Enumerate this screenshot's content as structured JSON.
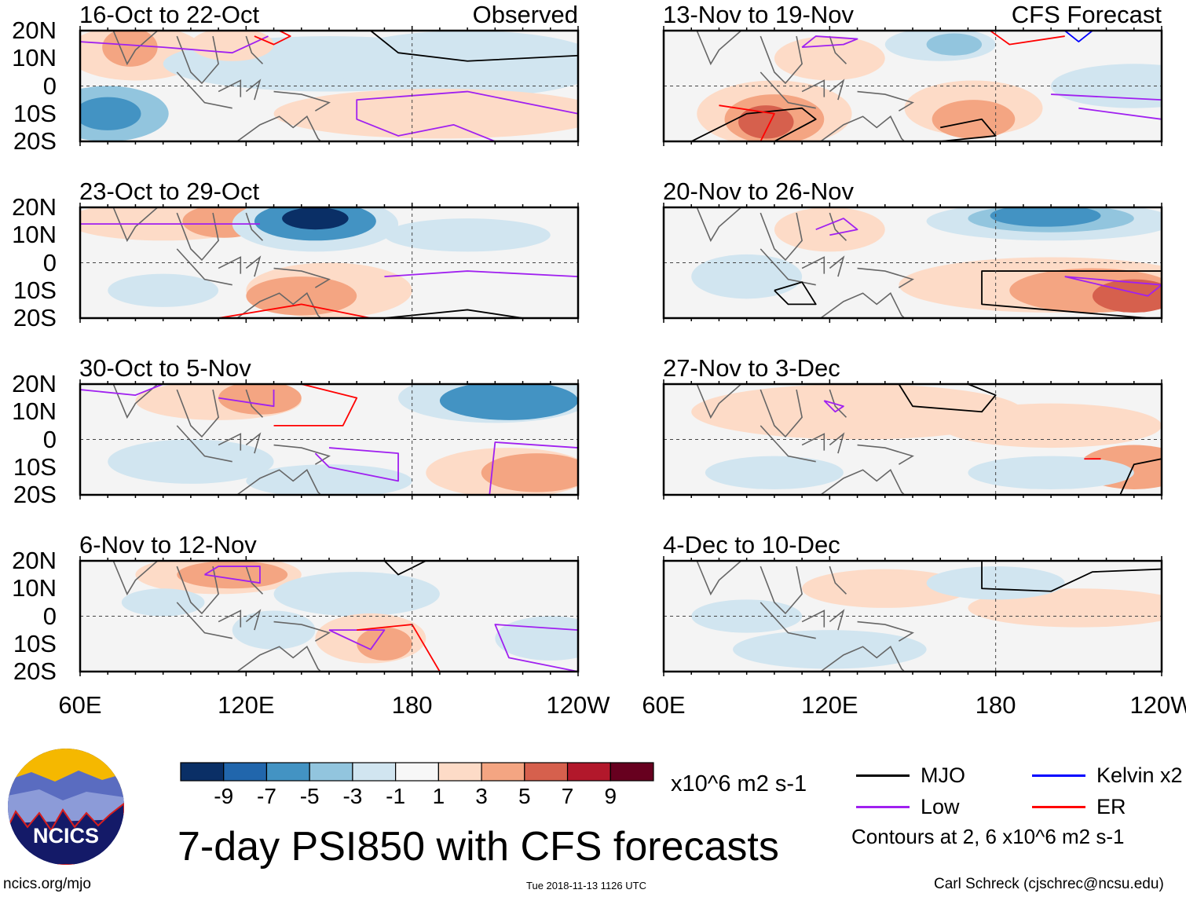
{
  "chart_data": {
    "type": "heatmap",
    "title": "7-day PSI850 with CFS forecasts",
    "variable": "PSI850 anomaly",
    "units": "x10^6 m2 s-1",
    "columns": [
      {
        "label": "Observed",
        "panels": [
          "16-Oct to 22-Oct",
          "23-Oct to 29-Oct",
          "30-Oct to 5-Nov",
          "6-Nov to 12-Nov"
        ]
      },
      {
        "label": "CFS Forecast",
        "panels": [
          "13-Nov to 19-Nov",
          "20-Nov to 26-Nov",
          "27-Nov to 3-Dec",
          "4-Dec to 10-Dec"
        ]
      }
    ],
    "lat_ticks": [
      "20N",
      "10N",
      "0",
      "10S",
      "20S"
    ],
    "lon_ticks": [
      "60E",
      "120E",
      "180",
      "120W"
    ],
    "lat_range": [
      -20,
      20
    ],
    "lon_range": [
      60,
      240
    ],
    "colorbar": {
      "levels": [
        "-9",
        "-7",
        "-5",
        "-3",
        "-1",
        "1",
        "3",
        "5",
        "7",
        "9"
      ],
      "colors": [
        "#0a2f66",
        "#2166ac",
        "#4393c3",
        "#92c5de",
        "#d1e5f0",
        "#f7f7f7",
        "#fddbc7",
        "#f4a582",
        "#d6604d",
        "#b2182b",
        "#67001f"
      ]
    },
    "legend": [
      {
        "label": "MJO",
        "color": "#000000"
      },
      {
        "label": "Kelvin x2",
        "color": "#0000ff"
      },
      {
        "label": "Low",
        "color": "#a020f0"
      },
      {
        "label": "ER",
        "color": "#ff0000"
      }
    ],
    "contour_note": "Contours at 2, 6 x10^6 m2 s-1"
  },
  "footer": {
    "logo_text": "NCICS",
    "url": "ncics.org/mjo",
    "timestamp": "Tue 2018-11-13 1126 UTC",
    "author": "Carl Schreck (cjschrec@ncsu.edu)"
  }
}
